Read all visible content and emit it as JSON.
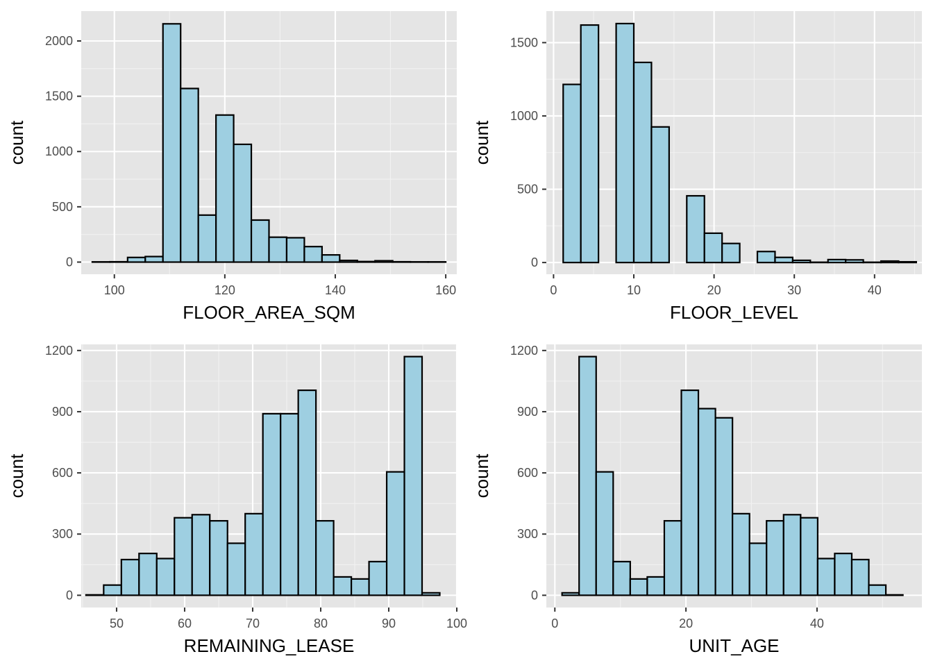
{
  "colors": {
    "panel_background": "#e5e5e5",
    "bar_fill": "#9ecfe1",
    "bar_outline": "#000000",
    "grid": "#ffffff"
  },
  "chart_data": [
    {
      "type": "bar",
      "variant": "histogram",
      "xlabel": "FLOOR_AREA_SQM",
      "ylabel": "count",
      "xlim": [
        94.0,
        162.0
      ],
      "ylim": [
        -110,
        2270
      ],
      "xticks": [
        100,
        120,
        140,
        160
      ],
      "yticks": [
        0,
        500,
        1000,
        1500,
        2000
      ],
      "xminor": [
        110,
        130,
        150
      ],
      "yminor": [
        250,
        750,
        1250,
        1750
      ],
      "bin_width": 3.2,
      "bin_starts": [
        96.0,
        99.2,
        102.4,
        105.6,
        108.8,
        112.0,
        115.2,
        118.4,
        121.6,
        124.8,
        128.0,
        131.2,
        134.4,
        137.6,
        140.8,
        144.0,
        147.2,
        150.4,
        153.6,
        156.8
      ],
      "values": [
        2,
        3,
        42,
        50,
        2155,
        1570,
        425,
        1330,
        1065,
        380,
        225,
        220,
        140,
        65,
        15,
        5,
        12,
        3,
        2,
        2
      ],
      "grid": true
    },
    {
      "type": "bar",
      "variant": "histogram",
      "xlabel": "FLOOR_LEVEL",
      "ylabel": "count",
      "xlim": [
        -0.9,
        45.9
      ],
      "ylim": [
        -80,
        1715
      ],
      "xticks": [
        0,
        10,
        20,
        30,
        40
      ],
      "yticks": [
        0,
        500,
        1000,
        1500
      ],
      "xminor": [
        5,
        15,
        25,
        35,
        45
      ],
      "yminor": [
        250,
        750,
        1250
      ],
      "bin_width": 2.2,
      "bin_starts": [
        1.2,
        3.4,
        5.6,
        7.8,
        10.0,
        12.2,
        14.4,
        16.6,
        18.8,
        21.0,
        23.2,
        25.4,
        27.6,
        29.8,
        32.0,
        34.2,
        36.4,
        38.6,
        40.8,
        43.0
      ],
      "values": [
        1215,
        1620,
        0,
        1630,
        1365,
        925,
        0,
        455,
        200,
        130,
        0,
        75,
        35,
        15,
        2,
        20,
        18,
        2,
        10,
        5
      ],
      "grid": true
    },
    {
      "type": "bar",
      "variant": "histogram",
      "xlabel": "REMAINING_LEASE",
      "ylabel": "count",
      "xlim": [
        44.8,
        100.0
      ],
      "ylim": [
        -60,
        1230
      ],
      "xticks": [
        50,
        60,
        70,
        80,
        90,
        100
      ],
      "yticks": [
        0,
        300,
        600,
        900,
        1200
      ],
      "xminor": [
        45,
        55,
        65,
        75,
        85,
        95
      ],
      "yminor": [
        150,
        450,
        750,
        1050
      ],
      "bin_width": 2.6,
      "bin_starts": [
        45.5,
        48.1,
        50.7,
        53.3,
        55.9,
        58.5,
        61.1,
        63.7,
        66.3,
        68.9,
        71.5,
        74.1,
        76.7,
        79.3,
        81.9,
        84.5,
        87.1,
        89.7,
        92.3,
        94.9
      ],
      "values": [
        2,
        50,
        175,
        205,
        180,
        380,
        395,
        365,
        255,
        400,
        890,
        890,
        1005,
        365,
        90,
        80,
        165,
        605,
        1170,
        12
      ],
      "grid": true
    },
    {
      "type": "bar",
      "variant": "histogram",
      "xlabel": "UNIT_AGE",
      "ylabel": "count",
      "xlim": [
        -1.3,
        56.0
      ],
      "ylim": [
        -60,
        1230
      ],
      "xticks": [
        0,
        20,
        40
      ],
      "yticks": [
        0,
        300,
        600,
        900,
        1200
      ],
      "xminor": [
        10,
        30,
        50
      ],
      "yminor": [
        150,
        450,
        750,
        1050
      ],
      "bin_width": 2.6,
      "bin_starts": [
        1.1,
        3.7,
        6.3,
        8.9,
        11.5,
        14.1,
        16.7,
        19.3,
        21.9,
        24.5,
        27.1,
        29.7,
        32.3,
        34.9,
        37.5,
        40.1,
        42.7,
        45.3,
        47.9,
        50.5
      ],
      "values": [
        12,
        1170,
        605,
        165,
        80,
        90,
        365,
        1005,
        915,
        870,
        400,
        255,
        365,
        395,
        380,
        180,
        205,
        175,
        50,
        2
      ],
      "grid": true
    }
  ]
}
